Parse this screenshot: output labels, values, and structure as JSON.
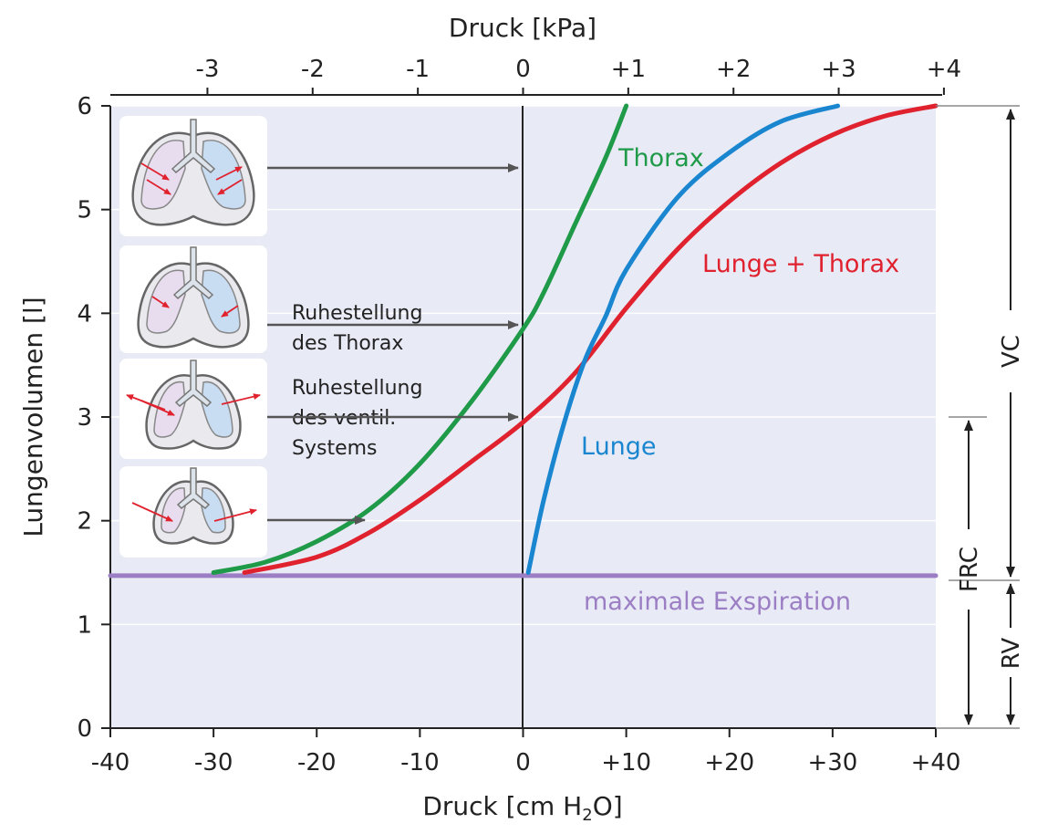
{
  "chart_data": {
    "type": "line",
    "xlabel_bottom": "Druck [cm H",
    "xlabel_bottom_sub": "2",
    "xlabel_bottom_end": "O]",
    "xlabel_top": "Druck [kPa]",
    "ylabel": "Lungenvolumen [l]",
    "xlim": [
      -40,
      40
    ],
    "ylim": [
      0,
      6
    ],
    "x_ticks": [
      "-40",
      "-30",
      "-20",
      "-10",
      "0",
      "+10",
      "+20",
      "+30",
      "+40"
    ],
    "x_tick_values": [
      -40,
      -30,
      -20,
      -10,
      0,
      10,
      20,
      30,
      40
    ],
    "top_ticks": [
      "-3",
      "-2",
      "-1",
      "0",
      "+1",
      "+2",
      "+3",
      "+4"
    ],
    "top_tick_values": [
      -3,
      -2,
      -1,
      0,
      1,
      2,
      3,
      4
    ],
    "y_ticks": [
      "0",
      "1",
      "2",
      "3",
      "4",
      "5",
      "6"
    ],
    "y_tick_values": [
      0,
      1,
      2,
      3,
      4,
      5,
      6
    ],
    "grid": "horizontal",
    "series": [
      {
        "name": "Thorax",
        "color": "#1e9a48",
        "points": [
          [
            -30,
            1.5
          ],
          [
            -25,
            1.6
          ],
          [
            -20,
            1.8
          ],
          [
            -15,
            2.1
          ],
          [
            -10,
            2.55
          ],
          [
            -5,
            3.15
          ],
          [
            0,
            3.85
          ],
          [
            2,
            4.2
          ],
          [
            5,
            4.85
          ],
          [
            8,
            5.5
          ],
          [
            10,
            6.0
          ]
        ]
      },
      {
        "name": "Lunge + Thorax",
        "color": "#e0222f",
        "points": [
          [
            -27,
            1.5
          ],
          [
            -20,
            1.65
          ],
          [
            -15,
            1.88
          ],
          [
            -10,
            2.2
          ],
          [
            -5,
            2.57
          ],
          [
            0,
            2.95
          ],
          [
            5,
            3.42
          ],
          [
            10,
            4.05
          ],
          [
            15,
            4.62
          ],
          [
            20,
            5.08
          ],
          [
            25,
            5.45
          ],
          [
            30,
            5.72
          ],
          [
            35,
            5.9
          ],
          [
            40,
            6.0
          ]
        ]
      },
      {
        "name": "Lunge",
        "color": "#1a86cf",
        "points": [
          [
            0.5,
            1.5
          ],
          [
            2,
            2.2
          ],
          [
            4,
            2.95
          ],
          [
            6,
            3.55
          ],
          [
            8,
            3.97
          ],
          [
            10,
            4.42
          ],
          [
            15,
            5.12
          ],
          [
            20,
            5.55
          ],
          [
            25,
            5.85
          ],
          [
            30.5,
            6.0
          ]
        ]
      },
      {
        "name": "maximale Exspiration",
        "color": "#9b7ec4",
        "points": [
          [
            -40,
            1.47
          ],
          [
            40,
            1.47
          ]
        ]
      }
    ],
    "annotations": {
      "ruhe_thorax": [
        "Ruhestellung",
        "des Thorax"
      ],
      "ruhe_system": [
        "Ruhestellung",
        "des ventil.",
        "Systems"
      ]
    },
    "brackets": {
      "vc": "VC",
      "frc": "FRC",
      "rv": "RV"
    }
  }
}
